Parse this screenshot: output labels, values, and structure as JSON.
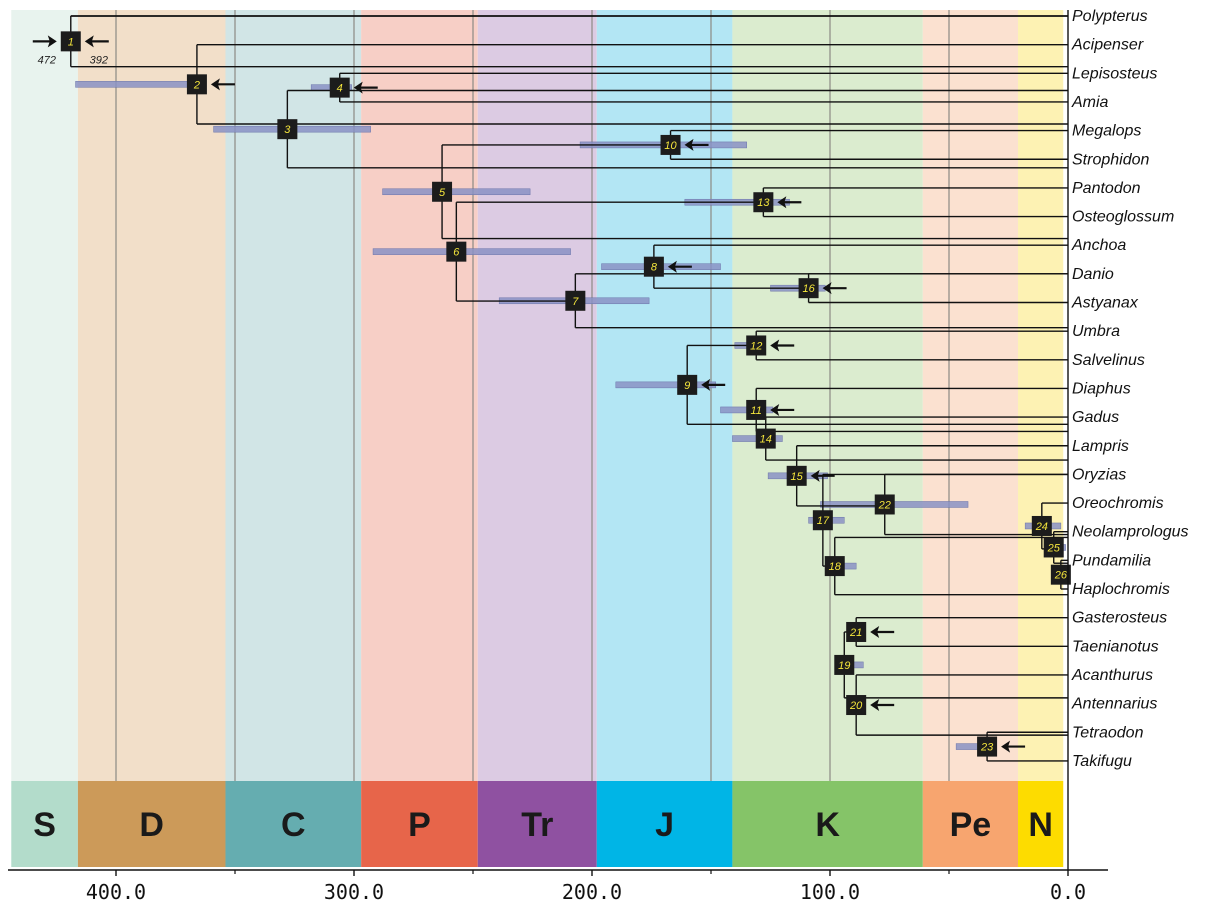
{
  "chart_data": {
    "type": "timetree",
    "x_axis": {
      "reversed": true,
      "range": [
        448,
        0
      ],
      "ticks": [
        400,
        300,
        200,
        100,
        0
      ],
      "tick_labels": [
        "400.0",
        "300.0",
        "200.0",
        "100.0",
        "0.0"
      ]
    },
    "periods": [
      {
        "abbr": "S",
        "start": 444,
        "end": 416,
        "band": "#b3dccb",
        "bg": "#e8f3ee"
      },
      {
        "abbr": "D",
        "start": 416,
        "end": 354,
        "band": "#cc9a59",
        "bg": "#f2dfc9"
      },
      {
        "abbr": "C",
        "start": 354,
        "end": 297,
        "band": "#65adb0",
        "bg": "#d1e5e6"
      },
      {
        "abbr": "P",
        "start": 297,
        "end": 248,
        "band": "#e7654a",
        "bg": "#f7cfc6"
      },
      {
        "abbr": "Tr",
        "start": 248,
        "end": 198,
        "band": "#8f51a1",
        "bg": "#dccbe3"
      },
      {
        "abbr": "J",
        "start": 198,
        "end": 141,
        "band": "#00b5e6",
        "bg": "#b3e6f4"
      },
      {
        "abbr": "K",
        "start": 141,
        "end": 61,
        "band": "#85c468",
        "bg": "#dbeccf"
      },
      {
        "abbr": "Pe",
        "start": 61,
        "end": 21,
        "band": "#f7a56f",
        "bg": "#fbe1d0"
      },
      {
        "abbr": "N",
        "start": 21,
        "end": 2,
        "band": "#fddc00",
        "bg": "#fdf2b3"
      }
    ],
    "taxa": [
      "Polypterus",
      "Acipenser",
      "Lepisosteus",
      "Amia",
      "Megalops",
      "Strophidon",
      "Pantodon",
      "Osteoglossum",
      "Anchoa",
      "Danio",
      "Astyanax",
      "Umbra",
      "Salvelinus",
      "Diaphus",
      "Gadus",
      "Lampris",
      "Oryzias",
      "Oreochromis",
      "Neolamprologus",
      "Pundamilia",
      "Haplochromis",
      "Gasterosteus",
      "Taenianotus",
      "Acanthurus",
      "Antennarius",
      "Tetraodon",
      "Takifugu"
    ],
    "nodes": [
      {
        "id": 1,
        "age": 419,
        "ci": [
          419,
          419
        ],
        "calibration": "both"
      },
      {
        "id": 2,
        "age": 366,
        "ci": [
          417,
          363
        ],
        "calibration": "min"
      },
      {
        "id": 3,
        "age": 328,
        "ci": [
          359,
          293
        ],
        "calibration": "none"
      },
      {
        "id": 4,
        "age": 306,
        "ci": [
          318,
          301
        ],
        "calibration": "min"
      },
      {
        "id": 5,
        "age": 263,
        "ci": [
          288,
          226
        ],
        "calibration": "none"
      },
      {
        "id": 6,
        "age": 257,
        "ci": [
          292,
          209
        ],
        "calibration": "none"
      },
      {
        "id": 7,
        "age": 207,
        "ci": [
          239,
          176
        ],
        "calibration": "none"
      },
      {
        "id": 8,
        "age": 174,
        "ci": [
          196,
          146
        ],
        "calibration": "min"
      },
      {
        "id": 9,
        "age": 160,
        "ci": [
          190,
          148
        ],
        "calibration": "min"
      },
      {
        "id": 10,
        "age": 167,
        "ci": [
          205,
          135
        ],
        "calibration": "min"
      },
      {
        "id": 11,
        "age": 131,
        "ci": [
          146,
          124
        ],
        "calibration": "min"
      },
      {
        "id": 12,
        "age": 131,
        "ci": [
          140,
          127
        ],
        "calibration": "min"
      },
      {
        "id": 13,
        "age": 128,
        "ci": [
          161,
          117
        ],
        "calibration": "min"
      },
      {
        "id": 14,
        "age": 127,
        "ci": [
          141,
          120
        ],
        "calibration": "none"
      },
      {
        "id": 15,
        "age": 114,
        "ci": [
          126,
          101
        ],
        "calibration": "min"
      },
      {
        "id": 16,
        "age": 109,
        "ci": [
          125,
          102
        ],
        "calibration": "min"
      },
      {
        "id": 17,
        "age": 103,
        "ci": [
          109,
          94
        ],
        "calibration": "none"
      },
      {
        "id": 18,
        "age": 98,
        "ci": [
          102,
          89
        ],
        "calibration": "none"
      },
      {
        "id": 19,
        "age": 94,
        "ci": [
          98,
          86
        ],
        "calibration": "none"
      },
      {
        "id": 20,
        "age": 89,
        "ci": [
          93,
          86
        ],
        "calibration": "min"
      },
      {
        "id": 21,
        "age": 89,
        "ci": [
          92,
          86
        ],
        "calibration": "min"
      },
      {
        "id": 22,
        "age": 77,
        "ci": [
          104,
          42
        ],
        "calibration": "none"
      },
      {
        "id": 23,
        "age": 34,
        "ci": [
          47,
          30
        ],
        "calibration": "min"
      },
      {
        "id": 24,
        "age": 11,
        "ci": [
          18,
          3
        ],
        "calibration": "none"
      },
      {
        "id": 25,
        "age": 6,
        "ci": [
          9,
          1
        ],
        "calibration": "none"
      },
      {
        "id": 26,
        "age": 3,
        "ci": [
          4,
          1
        ],
        "calibration": "none"
      }
    ],
    "node_placement": [
      {
        "id": 1,
        "tip_a": 0,
        "tip_b": 1.77
      },
      {
        "id": 2,
        "tip_a": 1,
        "tip_b": 3.77
      },
      {
        "id": 3,
        "tip_a": 2.6,
        "tip_b": 5.3
      },
      {
        "id": 4,
        "tip_a": 2,
        "tip_b": 3
      },
      {
        "id": 5,
        "tip_a": 4.5,
        "tip_b": 7.77
      },
      {
        "id": 6,
        "tip_a": 6.5,
        "tip_b": 9.95
      },
      {
        "id": 7,
        "tip_a": 9,
        "tip_b": 10.88
      },
      {
        "id": 8,
        "tip_a": 8,
        "tip_b": 9.5
      },
      {
        "id": 9,
        "tip_a": 11.5,
        "tip_b": 14.25
      },
      {
        "id": 10,
        "tip_a": 4,
        "tip_b": 5
      },
      {
        "id": 11,
        "tip_a": 13,
        "tip_b": 14.5
      },
      {
        "id": 12,
        "tip_a": 11,
        "tip_b": 12
      },
      {
        "id": 13,
        "tip_a": 6,
        "tip_b": 7
      },
      {
        "id": 14,
        "tip_a": 14,
        "tip_b": 15.5
      },
      {
        "id": 15,
        "tip_a": 15,
        "tip_b": 17.1
      },
      {
        "id": 16,
        "tip_a": 9,
        "tip_b": 10
      },
      {
        "id": 17,
        "tip_a": 16,
        "tip_b": 19.2
      },
      {
        "id": 18,
        "tip_a": 18.2,
        "tip_b": 20.2
      },
      {
        "id": 19,
        "tip_a": 21.5,
        "tip_b": 23.8
      },
      {
        "id": 20,
        "tip_a": 23,
        "tip_b": 25.1
      },
      {
        "id": 21,
        "tip_a": 21,
        "tip_b": 22
      },
      {
        "id": 22,
        "tip_a": 16,
        "tip_b": 18.1
      },
      {
        "id": 23,
        "tip_a": 25,
        "tip_b": 26
      },
      {
        "id": 24,
        "tip_a": 17,
        "tip_b": 18.6
      },
      {
        "id": 25,
        "tip_a": 18,
        "tip_b": 19.1
      },
      {
        "id": 26,
        "tip_a": 19,
        "tip_b": 20
      }
    ],
    "calibration_labels": {
      "max": "472",
      "min": "392"
    }
  }
}
